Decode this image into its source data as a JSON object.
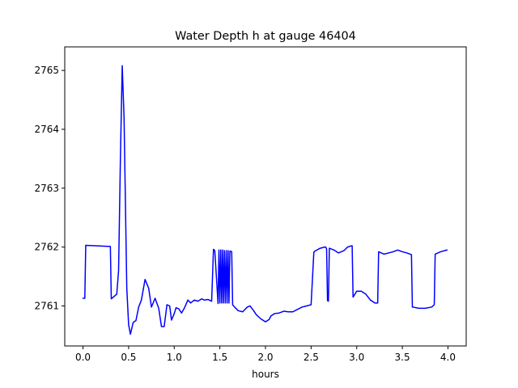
{
  "chart_data": {
    "type": "line",
    "title": "Water Depth h at gauge 46404",
    "xlabel": "hours",
    "ylabel": "",
    "xlim": [
      -0.2,
      4.2
    ],
    "ylim": [
      2760.32,
      2765.4
    ],
    "xticks": [
      0.0,
      0.5,
      1.0,
      1.5,
      2.0,
      2.5,
      3.0,
      3.5,
      4.0
    ],
    "xtick_labels": [
      "0.0",
      "0.5",
      "1.0",
      "1.5",
      "2.0",
      "2.5",
      "3.0",
      "3.5",
      "4.0"
    ],
    "yticks": [
      2761,
      2762,
      2763,
      2764,
      2765
    ],
    "ytick_labels": [
      "2761",
      "2762",
      "2763",
      "2764",
      "2765"
    ],
    "grid": false,
    "series": [
      {
        "color": "#0000ff",
        "x": [
          0.0,
          0.02,
          0.03,
          0.3,
          0.31,
          0.37,
          0.39,
          0.41,
          0.43,
          0.45,
          0.48,
          0.5,
          0.52,
          0.55,
          0.58,
          0.61,
          0.64,
          0.68,
          0.72,
          0.75,
          0.79,
          0.83,
          0.86,
          0.89,
          0.92,
          0.95,
          0.97,
          1.0,
          1.02,
          1.05,
          1.08,
          1.11,
          1.15,
          1.18,
          1.22,
          1.26,
          1.3,
          1.33,
          1.37,
          1.41,
          1.43,
          1.44,
          1.445,
          1.48,
          1.49,
          1.5,
          1.51,
          1.52,
          1.53,
          1.54,
          1.55,
          1.56,
          1.57,
          1.58,
          1.59,
          1.6,
          1.61,
          1.62,
          1.63,
          1.64,
          1.65,
          1.7,
          1.75,
          1.8,
          1.83,
          1.87,
          1.9,
          1.95,
          2.0,
          2.04,
          2.06,
          2.1,
          2.15,
          2.2,
          2.25,
          2.3,
          2.35,
          2.4,
          2.45,
          2.5,
          2.53,
          2.54,
          2.6,
          2.65,
          2.66,
          2.67,
          2.68,
          2.69,
          2.7,
          2.75,
          2.8,
          2.86,
          2.9,
          2.94,
          2.95,
          2.96,
          3.0,
          3.05,
          3.1,
          3.15,
          3.2,
          3.23,
          3.24,
          3.3,
          3.35,
          3.4,
          3.45,
          3.5,
          3.55,
          3.6,
          3.61,
          3.62,
          3.68,
          3.75,
          3.82,
          3.85,
          3.86,
          3.92,
          3.99
        ],
        "y": [
          2761.13,
          2761.13,
          2762.03,
          2762.01,
          2761.12,
          2761.2,
          2761.6,
          2763.5,
          2765.08,
          2764.2,
          2761.3,
          2760.68,
          2760.52,
          2760.72,
          2760.75,
          2760.98,
          2761.1,
          2761.45,
          2761.3,
          2760.98,
          2761.13,
          2760.96,
          2760.65,
          2760.65,
          2761.02,
          2761.0,
          2760.76,
          2760.87,
          2760.97,
          2760.95,
          2760.88,
          2760.96,
          2761.1,
          2761.05,
          2761.1,
          2761.08,
          2761.12,
          2761.1,
          2761.11,
          2761.08,
          2761.96,
          2761.95,
          2761.93,
          2761.04,
          2761.95,
          2761.05,
          2761.95,
          2761.05,
          2761.95,
          2761.05,
          2761.94,
          2761.05,
          2761.94,
          2761.05,
          2761.94,
          2761.05,
          2761.93,
          2761.93,
          2761.92,
          2761.02,
          2761.0,
          2760.92,
          2760.9,
          2760.98,
          2761.0,
          2760.92,
          2760.85,
          2760.78,
          2760.73,
          2760.77,
          2760.83,
          2760.87,
          2760.88,
          2760.91,
          2760.9,
          2760.9,
          2760.94,
          2760.98,
          2761.0,
          2761.02,
          2761.91,
          2761.93,
          2761.98,
          2762.0,
          2762.0,
          2761.97,
          2761.09,
          2761.08,
          2761.98,
          2761.95,
          2761.9,
          2761.94,
          2762.0,
          2762.02,
          2762.02,
          2761.15,
          2761.25,
          2761.25,
          2761.2,
          2761.1,
          2761.05,
          2761.05,
          2761.92,
          2761.88,
          2761.9,
          2761.92,
          2761.95,
          2761.92,
          2761.9,
          2761.87,
          2760.98,
          2760.98,
          2760.96,
          2760.96,
          2760.98,
          2761.02,
          2761.88,
          2761.92,
          2761.95
        ]
      }
    ]
  }
}
